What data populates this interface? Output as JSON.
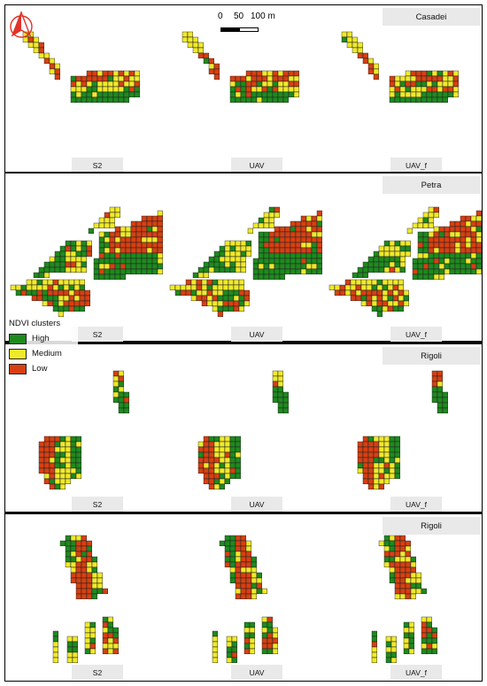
{
  "legend": {
    "title": "NDVI clusters",
    "classes": [
      {
        "label": "High",
        "color": "#1e8a1e"
      },
      {
        "label": "Medium",
        "color": "#f0e92a"
      },
      {
        "label": "Low",
        "color": "#d64012"
      }
    ]
  },
  "scale": {
    "t0": "0",
    "t1": "50",
    "t2": "100 m"
  },
  "panels": [
    {
      "site": "Casadei",
      "sources": [
        "S2",
        "UAV",
        "UAV_f"
      ]
    },
    {
      "site": "Petra",
      "sources": [
        "S2",
        "UAV",
        "UAV_f"
      ]
    },
    {
      "site": "Rigoli",
      "sources": [
        "S2",
        "UAV",
        "UAV_f"
      ]
    },
    {
      "site": "Rigoli",
      "sources": [
        "S2",
        "UAV",
        "UAV_f"
      ]
    }
  ],
  "colors": {
    "high": "#1e8a1e",
    "medium": "#f0e92a",
    "low": "#d64012",
    "north_arrow": "#e0342a"
  }
}
